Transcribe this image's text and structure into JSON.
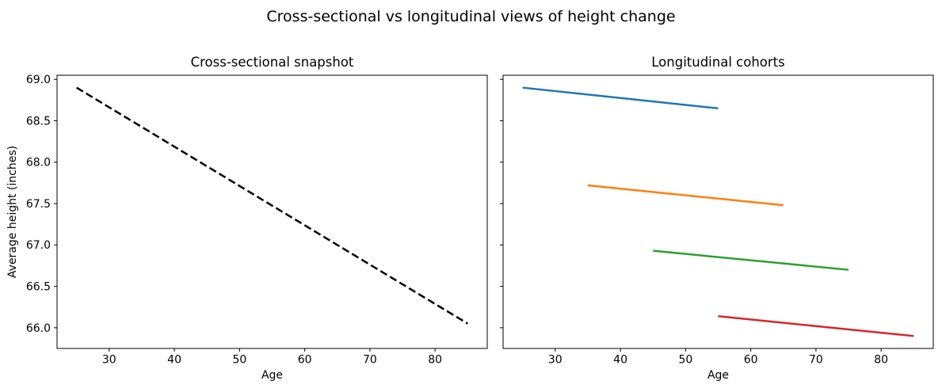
{
  "figure": {
    "suptitle": "Cross-sectional vs longitudinal views of height change",
    "background_color": "#ffffff",
    "text_color": "#000000"
  },
  "chart_data": [
    {
      "type": "line",
      "title": "Cross-sectional snapshot",
      "xlabel": "Age",
      "ylabel": "Average height (inches)",
      "xlim": [
        22,
        88
      ],
      "ylim": [
        65.75,
        69.05
      ],
      "xticks": [
        30,
        40,
        50,
        60,
        70,
        80
      ],
      "yticks": [
        66.0,
        66.5,
        67.0,
        67.5,
        68.0,
        68.5,
        69.0
      ],
      "show_ytick_labels": true,
      "grid": false,
      "legend": "none",
      "series": [
        {
          "id": "cross-sectional-line",
          "color": "#000000",
          "linestyle": "dashed",
          "x": [
            25,
            85
          ],
          "y": [
            68.9,
            66.05
          ]
        }
      ]
    },
    {
      "type": "line",
      "title": "Longitudinal cohorts",
      "xlabel": "Age",
      "ylabel": "",
      "xlim": [
        22,
        88
      ],
      "ylim": [
        65.75,
        69.05
      ],
      "xticks": [
        30,
        40,
        50,
        60,
        70,
        80
      ],
      "yticks": [
        66.0,
        66.5,
        67.0,
        67.5,
        68.0,
        68.5,
        69.0
      ],
      "show_ytick_labels": false,
      "grid": false,
      "legend": "none",
      "series": [
        {
          "id": "cohort-1-blue",
          "color": "#1f77b4",
          "linestyle": "solid",
          "x": [
            25,
            55
          ],
          "y": [
            68.9,
            68.65
          ]
        },
        {
          "id": "cohort-2-orange",
          "color": "#ff7f0e",
          "linestyle": "solid",
          "x": [
            35,
            65
          ],
          "y": [
            67.72,
            67.48
          ]
        },
        {
          "id": "cohort-3-green",
          "color": "#2ca02c",
          "linestyle": "solid",
          "x": [
            45,
            75
          ],
          "y": [
            66.93,
            66.7
          ]
        },
        {
          "id": "cohort-4-red",
          "color": "#d62728",
          "linestyle": "solid",
          "x": [
            55,
            85
          ],
          "y": [
            66.14,
            65.9
          ]
        }
      ]
    }
  ]
}
